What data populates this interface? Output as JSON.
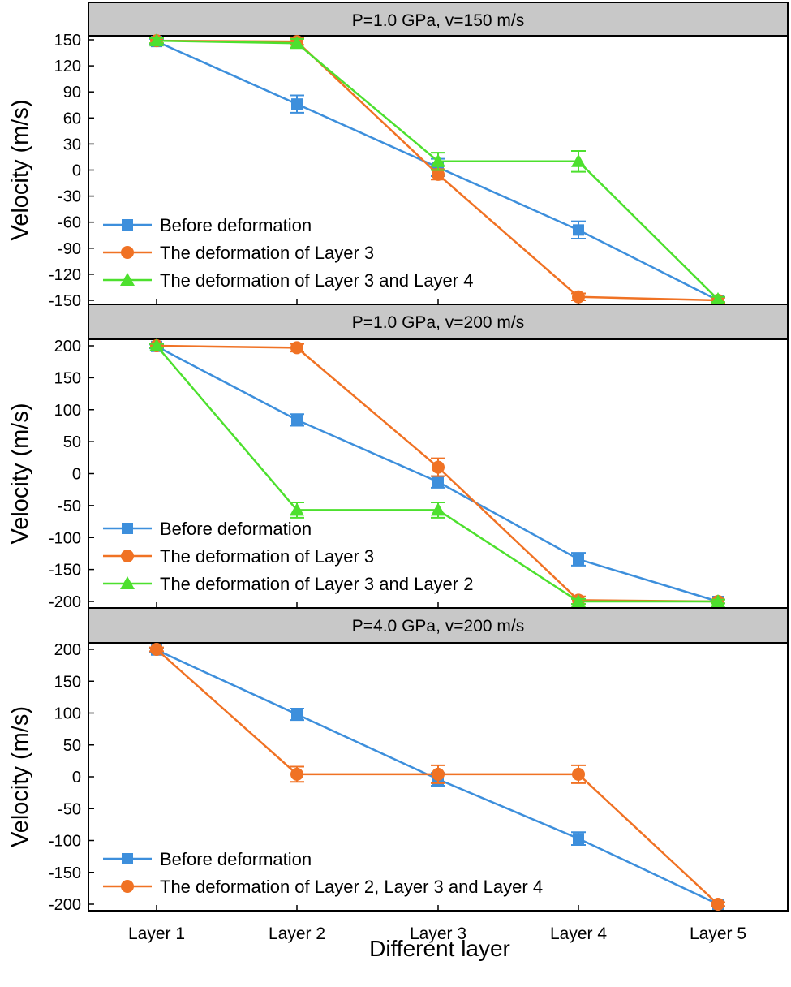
{
  "x_axis_title": "Different layer",
  "chart_data": [
    {
      "type": "line",
      "title": "P=1.0 GPa, v=150 m/s",
      "ylabel": "Velocity  (m/s)",
      "categories": [
        "Layer 1",
        "Layer 2",
        "Layer 3",
        "Layer 4",
        "Layer 5"
      ],
      "ylim": [
        -150,
        150
      ],
      "yticks": [
        150,
        120,
        90,
        60,
        30,
        0,
        -30,
        -60,
        -90,
        -120,
        -150
      ],
      "legend_position": "bottom-left",
      "series": [
        {
          "name": "Before deformation",
          "color": "#3d8fdc",
          "marker": "square",
          "values": [
            148,
            76,
            3,
            -69,
            -150
          ],
          "errors": [
            3,
            10,
            10,
            10,
            3
          ]
        },
        {
          "name": "The deformation of Layer 3",
          "color": "#f07224",
          "marker": "circle",
          "values": [
            149,
            148,
            -5,
            -146,
            -150
          ],
          "errors": [
            3,
            4,
            6,
            4,
            3
          ]
        },
        {
          "name": "The deformation of Layer 3 and Layer 4",
          "color": "#4de02e",
          "marker": "triangle",
          "values": [
            149,
            146,
            10,
            10,
            -149
          ],
          "errors": [
            3,
            5,
            10,
            12,
            3
          ]
        }
      ]
    },
    {
      "type": "line",
      "title": "P=1.0 GPa, v=200 m/s",
      "ylabel": "Velocity (m/s)",
      "categories": [
        "Layer 1",
        "Layer 2",
        "Layer 3",
        "Layer 4",
        "Layer 5"
      ],
      "ylim": [
        -200,
        200
      ],
      "yticks": [
        200,
        150,
        100,
        50,
        0,
        -50,
        -100,
        -150,
        -200
      ],
      "legend_position": "bottom-left",
      "series": [
        {
          "name": "Before deformation",
          "color": "#3d8fdc",
          "marker": "square",
          "values": [
            199,
            84,
            -13,
            -134,
            -200
          ],
          "errors": [
            3,
            9,
            9,
            10,
            3
          ]
        },
        {
          "name": "The deformation of Layer 3",
          "color": "#f07224",
          "marker": "circle",
          "values": [
            200,
            197,
            10,
            -198,
            -200
          ],
          "errors": [
            3,
            6,
            14,
            6,
            3
          ]
        },
        {
          "name": "The deformation of Layer 3 and Layer 2",
          "color": "#4de02e",
          "marker": "triangle",
          "values": [
            200,
            -57,
            -57,
            -200,
            -200
          ],
          "errors": [
            3,
            12,
            12,
            4,
            3
          ]
        }
      ]
    },
    {
      "type": "line",
      "title": "P=4.0 GPa, v=200 m/s",
      "ylabel": "Velocity (m/s)",
      "categories": [
        "Layer 1",
        "Layer 2",
        "Layer 3",
        "Layer 4",
        "Layer 5"
      ],
      "ylim": [
        -200,
        200
      ],
      "yticks": [
        200,
        150,
        100,
        50,
        0,
        -50,
        -100,
        -150,
        -200
      ],
      "legend_position": "bottom-left",
      "series": [
        {
          "name": "Before deformation",
          "color": "#3d8fdc",
          "marker": "square",
          "values": [
            199,
            98,
            -4,
            -97,
            -200
          ],
          "errors": [
            3,
            9,
            10,
            10,
            3
          ]
        },
        {
          "name": "The deformation of Layer 2, Layer 3 and Layer 4",
          "color": "#f07224",
          "marker": "circle",
          "values": [
            200,
            4,
            4,
            4,
            -200
          ],
          "errors": [
            3,
            12,
            14,
            14,
            3
          ]
        }
      ]
    }
  ]
}
